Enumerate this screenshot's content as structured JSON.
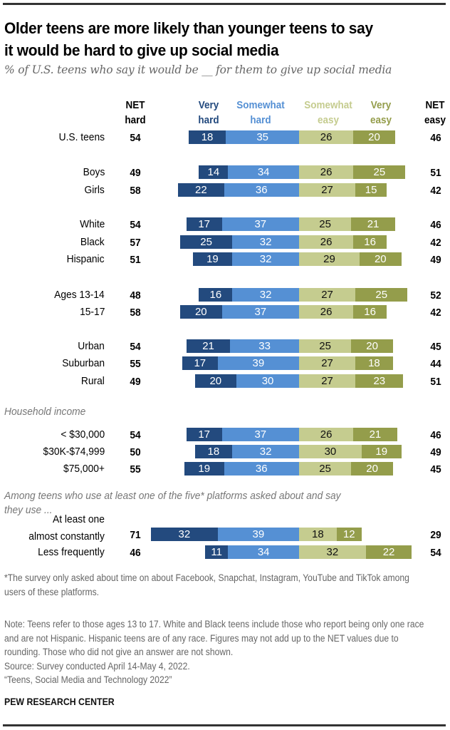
{
  "title_line1": "Older teens are more likely than younger teens to say",
  "title_line2": "it would be hard to give up social media",
  "subtitle": "% of U.S. teens who say it would be __ for them to give up social media",
  "headers": {
    "net_hard": [
      "NET",
      "hard"
    ],
    "very_hard": [
      "Very",
      "hard"
    ],
    "somewhat_hard": [
      "Somewhat",
      "hard"
    ],
    "somewhat_easy": [
      "Somewhat",
      "easy"
    ],
    "very_easy": [
      "Very",
      "easy"
    ],
    "net_easy": [
      "NET",
      "easy"
    ]
  },
  "colors": {
    "very_hard": "#234a7e",
    "somewhat_hard": "#5590d4",
    "somewhat_easy": "#c5cc8f",
    "very_easy": "#949d4b"
  },
  "group_labels": {
    "income": "Household income",
    "platforms_line1": "Among teens who use at least one of the five* platforms asked about and say",
    "platforms_line2": "they use ..."
  },
  "chart_data": {
    "type": "bar",
    "orientation": "horizontal-diverging-stacked",
    "title": "Older teens are more likely than younger teens to say it would be hard to give up social media",
    "subtitle": "% of U.S. teens who say it would be __ for them to give up social media",
    "series": [
      {
        "name": "Very hard",
        "side": "hard"
      },
      {
        "name": "Somewhat hard",
        "side": "hard"
      },
      {
        "name": "Somewhat easy",
        "side": "easy"
      },
      {
        "name": "Very easy",
        "side": "easy"
      }
    ],
    "rows": [
      {
        "label": [
          "U.S. teens"
        ],
        "net_hard": 54,
        "values": [
          18,
          35,
          26,
          20
        ],
        "net_easy": 46
      },
      {
        "label": [
          "Boys"
        ],
        "net_hard": 49,
        "values": [
          14,
          34,
          26,
          25
        ],
        "net_easy": 51
      },
      {
        "label": [
          "Girls"
        ],
        "net_hard": 58,
        "values": [
          22,
          36,
          27,
          15
        ],
        "net_easy": 42
      },
      {
        "label": [
          "White"
        ],
        "net_hard": 54,
        "values": [
          17,
          37,
          25,
          21
        ],
        "net_easy": 46
      },
      {
        "label": [
          "Black"
        ],
        "net_hard": 57,
        "values": [
          25,
          32,
          26,
          16
        ],
        "net_easy": 42
      },
      {
        "label": [
          "Hispanic"
        ],
        "net_hard": 51,
        "values": [
          19,
          32,
          29,
          20
        ],
        "net_easy": 49
      },
      {
        "label": [
          "Ages 13-14"
        ],
        "net_hard": 48,
        "values": [
          16,
          32,
          27,
          25
        ],
        "net_easy": 52
      },
      {
        "label": [
          "15-17"
        ],
        "net_hard": 58,
        "values": [
          20,
          37,
          26,
          16
        ],
        "net_easy": 42
      },
      {
        "label": [
          "Urban"
        ],
        "net_hard": 54,
        "values": [
          21,
          33,
          25,
          20
        ],
        "net_easy": 45
      },
      {
        "label": [
          "Suburban"
        ],
        "net_hard": 55,
        "values": [
          17,
          39,
          27,
          18
        ],
        "net_easy": 44
      },
      {
        "label": [
          "Rural"
        ],
        "net_hard": 49,
        "values": [
          20,
          30,
          27,
          23
        ],
        "net_easy": 51
      },
      {
        "label": [
          "< $30,000"
        ],
        "net_hard": 54,
        "values": [
          17,
          37,
          26,
          21
        ],
        "net_easy": 46
      },
      {
        "label": [
          "$30K-$74,999"
        ],
        "net_hard": 50,
        "values": [
          18,
          32,
          30,
          19
        ],
        "net_easy": 49
      },
      {
        "label": [
          "$75,000+"
        ],
        "net_hard": 55,
        "values": [
          19,
          36,
          25,
          20
        ],
        "net_easy": 45
      },
      {
        "label": [
          "At least one",
          "almost constantly"
        ],
        "net_hard": 71,
        "values": [
          32,
          39,
          18,
          12
        ],
        "net_easy": 29
      },
      {
        "label": [
          "Less frequently"
        ],
        "net_hard": 46,
        "values": [
          11,
          34,
          32,
          22
        ],
        "net_easy": 54
      }
    ],
    "xlabel": "",
    "ylabel": ""
  },
  "footnote_asterisk": "*The survey only asked about time on about Facebook, Snapchat, Instagram, YouTube and TikTok among users of these platforms.",
  "note": "Note: Teens refer to those ages 13 to 17. White and Black teens include those who report being only one race and are not Hispanic. Hispanic teens are of any race. Figures may not add up to the NET values due to rounding. Those who did not give an answer are not shown.",
  "source": "Source: Survey conducted April 14-May 4, 2022.",
  "report": "“Teens, Social Media and Technology 2022”",
  "brand": "PEW RESEARCH CENTER"
}
